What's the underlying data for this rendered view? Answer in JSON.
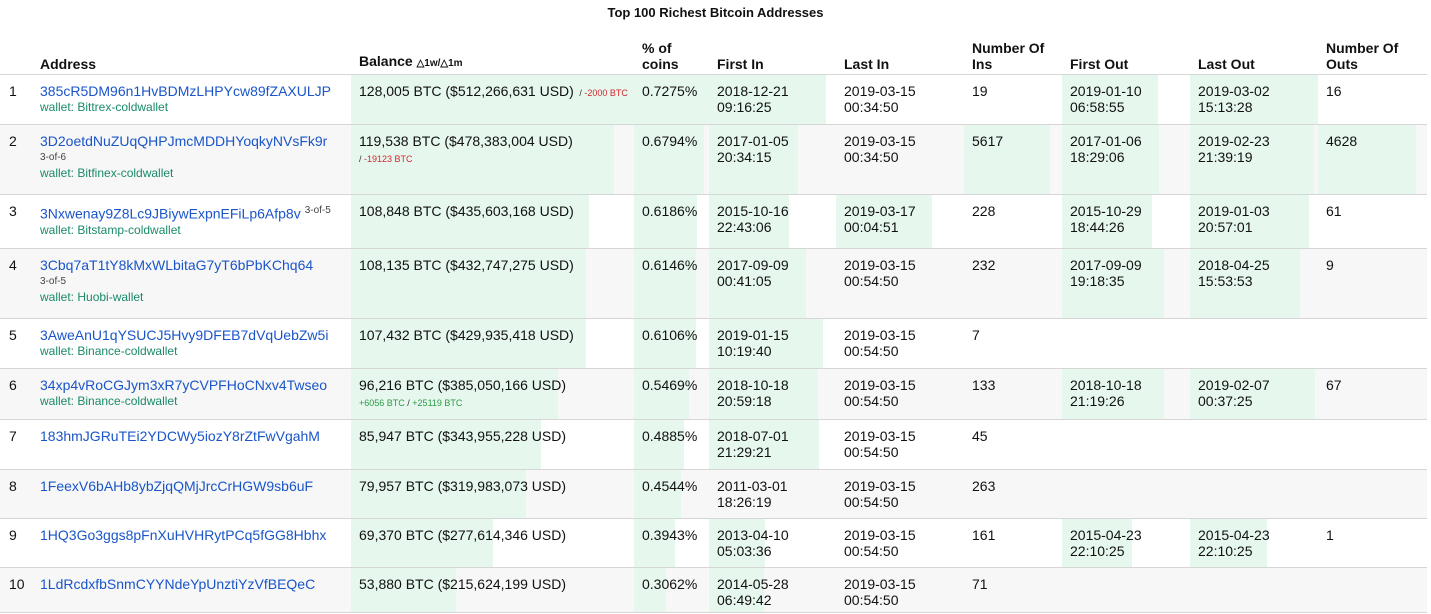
{
  "title": "Top 100 Richest Bitcoin Addresses",
  "colors": {
    "link": "#1a55c9",
    "wallet": "#1a8a6a",
    "bar": "#e6f7ee",
    "negative": "#d0292f",
    "positive": "#2e9a45"
  },
  "columns": {
    "address": "Address",
    "balance": "Balance",
    "balance_delta": "△1w/△1m",
    "pct_line1": "% of",
    "pct_line2": "coins",
    "first_in": "First In",
    "last_in": "Last In",
    "num_ins_line1": "Number Of",
    "num_ins_line2": "Ins",
    "first_out": "First Out",
    "last_out": "Last Out",
    "num_outs_line1": "Number Of",
    "num_outs_line2": "Outs"
  },
  "rows": [
    {
      "rank": "1",
      "address": "385cR5DM96n1HvBDMzLHPYcw89fZAXULJP",
      "sig": "",
      "wallet": "wallet: Bittrex-coldwallet",
      "balance": "128,005 BTC ($512,266,631 USD)",
      "change_1w": "",
      "change_1m": "-2000 BTC",
      "change_sign": "neg",
      "pct": "0.7275%",
      "first_in_date": "2018-12-21",
      "first_in_time": "09:16:25",
      "last_in_date": "2019-03-15",
      "last_in_time": "00:34:50",
      "num_ins": "19",
      "first_out_date": "2019-01-10",
      "first_out_time": "06:58:55",
      "last_out_date": "2019-03-02",
      "last_out_time": "15:13:28",
      "num_outs": "16",
      "fill_balance": 1.0,
      "fill_pct": 1.0,
      "fill_first_in": 0.92,
      "fill_last_in": 0.0,
      "fill_ins": 0.0,
      "fill_first_out": 0.75,
      "fill_last_out": 1.0,
      "fill_outs": 0.0
    },
    {
      "rank": "2",
      "address": "3D2oetdNuZUqQHPJmcMDDHYoqkyNVsFk9r",
      "sig": "3-of-6",
      "wallet": "wallet: Bitfinex-coldwallet",
      "balance": "119,538 BTC ($478,383,004 USD)",
      "change_1w": "",
      "change_1m": "-19123 BTC",
      "change_sign": "neg",
      "pct": "0.6794%",
      "first_in_date": "2017-01-05",
      "first_in_time": "20:34:15",
      "last_in_date": "2019-03-15",
      "last_in_time": "00:34:50",
      "num_ins": "5617",
      "first_out_date": "2017-01-06",
      "first_out_time": "18:29:06",
      "last_out_date": "2019-02-23",
      "last_out_time": "21:39:19",
      "num_outs": "4628",
      "fill_balance": 0.93,
      "fill_pct": 0.93,
      "fill_first_in": 0.7,
      "fill_last_in": 0.0,
      "fill_ins": 0.88,
      "fill_first_out": 0.76,
      "fill_last_out": 0.97,
      "fill_outs": 0.9
    },
    {
      "rank": "3",
      "address": "3Nxwenay9Z8Lc9JBiywExpnEFiLp6Afp8v",
      "sig": "3-of-5",
      "wallet": "wallet: Bitstamp-coldwallet",
      "balance": "108,848 BTC ($435,603,168 USD)",
      "change_1w": "",
      "change_1m": "",
      "change_sign": "",
      "pct": "0.6186%",
      "first_in_date": "2015-10-16",
      "first_in_time": "22:43:06",
      "last_in_date": "2019-03-17",
      "last_in_time": "00:04:51",
      "num_ins": "228",
      "first_out_date": "2015-10-29",
      "first_out_time": "18:44:26",
      "last_out_date": "2019-01-03",
      "last_out_time": "20:57:01",
      "num_outs": "61",
      "fill_balance": 0.84,
      "fill_pct": 0.84,
      "fill_first_in": 0.63,
      "fill_last_in": 0.75,
      "fill_ins": 0.0,
      "fill_first_out": 0.7,
      "fill_last_out": 0.93,
      "fill_outs": 0.0
    },
    {
      "rank": "4",
      "address": "3Cbq7aT1tY8kMxWLbitaG7yT6bPbKChq64",
      "sig": "3-of-5",
      "wallet": "wallet: Huobi-wallet",
      "balance": "108,135 BTC ($432,747,275 USD)",
      "change_1w": "",
      "change_1m": "",
      "change_sign": "",
      "pct": "0.6146%",
      "first_in_date": "2017-09-09",
      "first_in_time": "00:41:05",
      "last_in_date": "2019-03-15",
      "last_in_time": "00:54:50",
      "num_ins": "232",
      "first_out_date": "2017-09-09",
      "first_out_time": "19:18:35",
      "last_out_date": "2018-04-25",
      "last_out_time": "15:53:53",
      "num_outs": "9",
      "fill_balance": 0.83,
      "fill_pct": 0.83,
      "fill_first_in": 0.76,
      "fill_last_in": 0.0,
      "fill_ins": 0.0,
      "fill_first_out": 0.8,
      "fill_last_out": 0.86,
      "fill_outs": 0.0
    },
    {
      "rank": "5",
      "address": "3AweAnU1qYSUCJ5Hvy9DFEB7dVqUebZw5i",
      "sig": "",
      "wallet": "wallet: Binance-coldwallet",
      "balance": "107,432 BTC ($429,935,418 USD)",
      "change_1w": "",
      "change_1m": "",
      "change_sign": "",
      "pct": "0.6106%",
      "first_in_date": "2019-01-15",
      "first_in_time": "10:19:40",
      "last_in_date": "2019-03-15",
      "last_in_time": "00:54:50",
      "num_ins": "7",
      "first_out_date": "",
      "first_out_time": "",
      "last_out_date": "",
      "last_out_time": "",
      "num_outs": "",
      "fill_balance": 0.83,
      "fill_pct": 0.82,
      "fill_first_in": 0.9,
      "fill_last_in": 0.0,
      "fill_ins": 0.0,
      "fill_first_out": 0.0,
      "fill_last_out": 0.0,
      "fill_outs": 0.0
    },
    {
      "rank": "6",
      "address": "34xp4vRoCGJym3xR7yCVPFHoCNxv4Twseo",
      "sig": "",
      "wallet": "wallet: Binance-coldwallet",
      "balance": "96,216 BTC ($385,050,166 USD)",
      "change_1w": "+6056 BTC",
      "change_1m": "+25119 BTC",
      "change_sign": "pos",
      "pct": "0.5469%",
      "first_in_date": "2018-10-18",
      "first_in_time": "20:59:18",
      "last_in_date": "2019-03-15",
      "last_in_time": "00:54:50",
      "num_ins": "133",
      "first_out_date": "2018-10-18",
      "first_out_time": "21:19:26",
      "last_out_date": "2019-02-07",
      "last_out_time": "00:37:25",
      "num_outs": "67",
      "fill_balance": 0.73,
      "fill_pct": 0.73,
      "fill_first_in": 0.86,
      "fill_last_in": 0.0,
      "fill_ins": 0.0,
      "fill_first_out": 0.8,
      "fill_last_out": 0.98,
      "fill_outs": 0.0
    },
    {
      "rank": "7",
      "address": "183hmJGRuTEi2YDCWy5iozY8rZtFwVgahM",
      "sig": "",
      "wallet": "",
      "balance": "85,947 BTC ($343,955,228 USD)",
      "change_1w": "",
      "change_1m": "",
      "change_sign": "",
      "pct": "0.4885%",
      "first_in_date": "2018-07-01",
      "first_in_time": "21:29:21",
      "last_in_date": "2019-03-15",
      "last_in_time": "00:54:50",
      "num_ins": "45",
      "first_out_date": "",
      "first_out_time": "",
      "last_out_date": "",
      "last_out_time": "",
      "num_outs": "",
      "fill_balance": 0.67,
      "fill_pct": 0.66,
      "fill_first_in": 0.87,
      "fill_last_in": 0.0,
      "fill_ins": 0.0,
      "fill_first_out": 0.0,
      "fill_last_out": 0.0,
      "fill_outs": 0.0
    },
    {
      "rank": "8",
      "address": "1FeexV6bAHb8ybZjqQMjJrcCrHGW9sb6uF",
      "sig": "",
      "wallet": "",
      "balance": "79,957 BTC ($319,983,073 USD)",
      "change_1w": "",
      "change_1m": "",
      "change_sign": "",
      "pct": "0.4544%",
      "first_in_date": "2011-03-01",
      "first_in_time": "18:26:19",
      "last_in_date": "2019-03-15",
      "last_in_time": "00:54:50",
      "num_ins": "263",
      "first_out_date": "",
      "first_out_time": "",
      "last_out_date": "",
      "last_out_time": "",
      "num_outs": "",
      "fill_balance": 0.62,
      "fill_pct": 0.62,
      "fill_first_in": 0.0,
      "fill_last_in": 0.0,
      "fill_ins": 0.0,
      "fill_first_out": 0.0,
      "fill_last_out": 0.0,
      "fill_outs": 0.0
    },
    {
      "rank": "9",
      "address": "1HQ3Go3ggs8pFnXuHVHRytPCq5fGG8Hbhx",
      "sig": "",
      "wallet": "",
      "balance": "69,370 BTC ($277,614,346 USD)",
      "change_1w": "",
      "change_1m": "",
      "change_sign": "",
      "pct": "0.3943%",
      "first_in_date": "2013-04-10",
      "first_in_time": "05:03:36",
      "last_in_date": "2019-03-15",
      "last_in_time": "00:54:50",
      "num_ins": "161",
      "first_out_date": "2015-04-23",
      "first_out_time": "22:10:25",
      "last_out_date": "2015-04-23",
      "last_out_time": "22:10:25",
      "num_outs": "1",
      "fill_balance": 0.5,
      "fill_pct": 0.54,
      "fill_first_in": 0.44,
      "fill_last_in": 0.0,
      "fill_ins": 0.0,
      "fill_first_out": 0.55,
      "fill_last_out": 0.6,
      "fill_outs": 0.0
    },
    {
      "rank": "10",
      "address": "1LdRcdxfbSnmCYYNdeYpUnztiYzVfBEQeC",
      "sig": "",
      "wallet": "",
      "balance": "53,880 BTC ($215,624,199 USD)",
      "change_1w": "",
      "change_1m": "",
      "change_sign": "",
      "pct": "0.3062%",
      "first_in_date": "2014-05-28",
      "first_in_time": "06:49:42",
      "last_in_date": "2019-03-15",
      "last_in_time": "00:54:50",
      "num_ins": "71",
      "first_out_date": "",
      "first_out_time": "",
      "last_out_date": "",
      "last_out_time": "",
      "num_outs": "",
      "fill_balance": 0.37,
      "fill_pct": 0.42,
      "fill_first_in": 0.43,
      "fill_last_in": 0.0,
      "fill_ins": 0.0,
      "fill_first_out": 0.0,
      "fill_last_out": 0.0,
      "fill_outs": 0.0
    }
  ]
}
